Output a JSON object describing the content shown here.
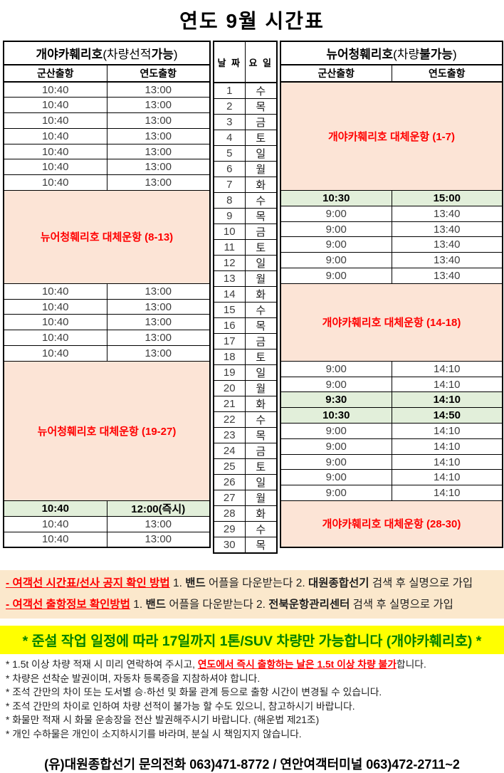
{
  "title": "연도  9월 시간표",
  "colors": {
    "pink": "#FCE4D6",
    "green": "#E2EFDA",
    "cream": "#FBE8CC",
    "yellow": "#FFFF00",
    "red": "#FF0000",
    "banner_green": "#008000"
  },
  "table": {
    "left": {
      "title_segments": [
        {
          "t": "개야카훼리호",
          "s": "hb"
        },
        {
          "t": "(차량선적",
          "s": "hp"
        },
        {
          "t": "가능",
          "s": "hb"
        },
        {
          "t": ")",
          "s": "hp"
        }
      ],
      "cols": [
        "군산출항",
        "연도출항"
      ]
    },
    "mid": {
      "cols": [
        "날 짜",
        "요 일"
      ]
    },
    "right": {
      "title_segments": [
        {
          "t": "뉴어청훼리호",
          "s": "hb"
        },
        {
          "t": "(차량",
          "s": "hp"
        },
        {
          "t": "불가능",
          "s": "hb"
        },
        {
          "t": ")",
          "s": "hp"
        }
      ],
      "cols": [
        "군산출항",
        "연도출항"
      ]
    },
    "rows": [
      {
        "date": "1",
        "day": "수",
        "left": [
          "10:40",
          "13:00"
        ]
      },
      {
        "date": "2",
        "day": "목",
        "left": [
          "10:40",
          "13:00"
        ]
      },
      {
        "date": "3",
        "day": "금",
        "left": [
          "10:40",
          "13:00"
        ]
      },
      {
        "date": "4",
        "day": "토",
        "left": [
          "10:40",
          "13:00"
        ]
      },
      {
        "date": "5",
        "day": "일",
        "left": [
          "10:40",
          "13:00"
        ]
      },
      {
        "date": "6",
        "day": "월",
        "left": [
          "10:40",
          "13:00"
        ]
      },
      {
        "date": "7",
        "day": "화",
        "left": [
          "10:40",
          "13:00"
        ]
      },
      {
        "date": "8",
        "day": "수",
        "right": [
          "10:30",
          "15:00"
        ],
        "right_hl": true
      },
      {
        "date": "9",
        "day": "목",
        "right": [
          "9:00",
          "13:40"
        ]
      },
      {
        "date": "10",
        "day": "금",
        "right": [
          "9:00",
          "13:40"
        ]
      },
      {
        "date": "11",
        "day": "토",
        "right": [
          "9:00",
          "13:40"
        ]
      },
      {
        "date": "12",
        "day": "일",
        "right": [
          "9:00",
          "13:40"
        ]
      },
      {
        "date": "13",
        "day": "월",
        "right": [
          "9:00",
          "13:40"
        ]
      },
      {
        "date": "14",
        "day": "화",
        "left": [
          "10:40",
          "13:00"
        ]
      },
      {
        "date": "15",
        "day": "수",
        "left": [
          "10:40",
          "13:00"
        ]
      },
      {
        "date": "16",
        "day": "목",
        "left": [
          "10:40",
          "13:00"
        ]
      },
      {
        "date": "17",
        "day": "금",
        "left": [
          "10:40",
          "13:00"
        ]
      },
      {
        "date": "18",
        "day": "토",
        "left": [
          "10:40",
          "13:00"
        ]
      },
      {
        "date": "19",
        "day": "일",
        "right": [
          "9:00",
          "14:10"
        ]
      },
      {
        "date": "20",
        "day": "월",
        "right": [
          "9:00",
          "14:10"
        ]
      },
      {
        "date": "21",
        "day": "화",
        "right": [
          "9:30",
          "14:10"
        ],
        "right_hl": true
      },
      {
        "date": "22",
        "day": "수",
        "right": [
          "10:30",
          "14:50"
        ],
        "right_hl": true
      },
      {
        "date": "23",
        "day": "목",
        "right": [
          "9:00",
          "14:10"
        ]
      },
      {
        "date": "24",
        "day": "금",
        "right": [
          "9:00",
          "14:10"
        ]
      },
      {
        "date": "25",
        "day": "토",
        "right": [
          "9:00",
          "14:10"
        ]
      },
      {
        "date": "26",
        "day": "일",
        "right": [
          "9:00",
          "14:10"
        ]
      },
      {
        "date": "27",
        "day": "월",
        "right": [
          "9:00",
          "14:10"
        ]
      },
      {
        "date": "28",
        "day": "화",
        "left": [
          "10:40",
          "12:00(즉시)"
        ],
        "left_hl": true
      },
      {
        "date": "29",
        "day": "수",
        "left": [
          "10:40",
          "13:00"
        ]
      },
      {
        "date": "30",
        "day": "목",
        "left": [
          "10:40",
          "13:00"
        ]
      }
    ],
    "left_spans": [
      {
        "from": 8,
        "to": 13,
        "label": "뉴어청훼리호 대체운항 (8-13)"
      },
      {
        "from": 19,
        "to": 27,
        "label": "뉴어청훼리호 대체운항 (19-27)"
      }
    ],
    "right_spans": [
      {
        "from": 1,
        "to": 7,
        "label": "개야카훼리호 대체운항 (1-7)"
      },
      {
        "from": 14,
        "to": 18,
        "label": "개야카훼리호 대체운항 (14-18)"
      },
      {
        "from": 28,
        "to": 30,
        "label": "개야카훼리호 대체운항 (28-30)"
      }
    ]
  },
  "info_band": {
    "lines": [
      [
        {
          "t": "- 여객선 시간표/선사 공지 확인 방법",
          "s": "rb"
        },
        {
          "t": " 1. ",
          "s": "p"
        },
        {
          "t": "밴드",
          "s": "b"
        },
        {
          "t": " 어플을 다운받는다 2. ",
          "s": "p"
        },
        {
          "t": "대원종합선기",
          "s": "b"
        },
        {
          "t": " 검색 후 실명으로 가입",
          "s": "p"
        }
      ],
      [
        {
          "t": "- 여객선 출항정보 확인방법",
          "s": "rb"
        },
        {
          "t": " 1. ",
          "s": "p"
        },
        {
          "t": "밴드",
          "s": "b"
        },
        {
          "t": " 어플을 다운받는다 2. ",
          "s": "p"
        },
        {
          "t": "전북운항관리센터",
          "s": "b"
        },
        {
          "t": " 검색 후 실명으로 가입",
          "s": "p"
        }
      ]
    ]
  },
  "banner": "* 준설 작업 일정에 따라 17일까지 1톤/SUV 차량만 가능합니다 (개야카훼리호) *",
  "notes": [
    [
      {
        "t": "* 1.5t 이상 차량 적재 시 미리 연락하여 주시고, ",
        "s": "p"
      },
      {
        "t": "연도에서 즉시 출항하는 날은 1.5t 이상 차량 불가",
        "s": "rb"
      },
      {
        "t": "합니다.",
        "s": "p"
      }
    ],
    [
      {
        "t": "* 차량은 선착순 발권이며, 자동차 등록증을 지참하셔야 합니다.",
        "s": "p"
      }
    ],
    [
      {
        "t": "* 조석 간만의 차이 또는 도서별 승·하선 및 화물 관계 등으로 출항 시간이 변경될 수 있습니다.",
        "s": "p"
      }
    ],
    [
      {
        "t": "* 조석 간만의 차이로 인하여 차량 선적이 불가능 할 수도 있으니, 참고하시기 바랍니다.",
        "s": "p"
      }
    ],
    [
      {
        "t": "* 화물만 적재 시 화물 운송장을 전산 발권해주시기 바랍니다. (해운법 제21조)",
        "s": "p"
      }
    ],
    [
      {
        "t": "* 개인 수하물은 개인이 소지하시기를 바라며, 분실 시 책임지지 않습니다.",
        "s": "p"
      }
    ]
  ],
  "footer": "(유)대원종합선기  문의전화 063)471-8772  /  연안여객터미널 063)472-2711~2"
}
